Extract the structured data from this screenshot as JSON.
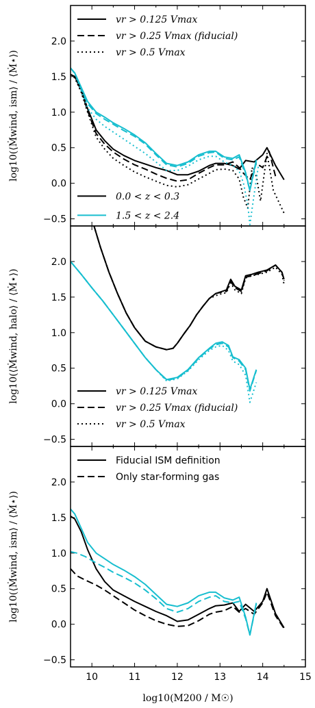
{
  "colors": {
    "black": "#000000",
    "cyan": "#17becf"
  },
  "chart_data": [
    {
      "type": "line",
      "ylabel": "log10(⟨Ṁwind, ism⟩ / ⟨Ṁ⋆⟩)",
      "xlim": [
        9.5,
        15
      ],
      "ylim": [
        -0.6,
        2.5
      ],
      "yticks": [
        "−0.5",
        "0.0",
        "0.5",
        "1.0",
        "1.5",
        "2.0"
      ],
      "legend_top": [
        "vr > 0.125 Vmax",
        "vr > 0.25 Vmax (fiducial)",
        "vr > 0.5 Vmax"
      ],
      "legend_bottom": [
        "0.0 < z < 0.3",
        "1.5 < z < 2.4"
      ],
      "series": [
        {
          "color": "black",
          "style": "solid",
          "x": [
            9.5,
            9.6,
            9.75,
            9.9,
            10.1,
            10.3,
            10.5,
            10.75,
            11,
            11.25,
            11.5,
            11.75,
            12,
            12.25,
            12.5,
            12.75,
            12.9,
            13.1,
            13.3,
            13.45,
            13.6,
            13.8,
            14,
            14.1,
            14.3,
            14.5
          ],
          "y": [
            1.53,
            1.5,
            1.32,
            1.05,
            0.75,
            0.6,
            0.48,
            0.39,
            0.32,
            0.27,
            0.22,
            0.18,
            0.12,
            0.12,
            0.17,
            0.25,
            0.28,
            0.28,
            0.25,
            0.2,
            0.32,
            0.3,
            0.4,
            0.5,
            0.25,
            0.05
          ]
        },
        {
          "color": "black",
          "style": "dashed",
          "x": [
            9.5,
            9.6,
            9.75,
            9.9,
            10.1,
            10.3,
            10.5,
            10.75,
            11,
            11.25,
            11.5,
            11.75,
            12,
            12.25,
            12.5,
            12.75,
            12.9,
            13.1,
            13.3,
            13.45,
            13.55,
            13.7,
            13.85,
            14,
            14.15,
            14.3
          ],
          "y": [
            1.53,
            1.5,
            1.3,
            1.02,
            0.7,
            0.55,
            0.44,
            0.34,
            0.26,
            0.2,
            0.13,
            0.07,
            0.03,
            0.05,
            0.14,
            0.22,
            0.26,
            0.26,
            0.3,
            0.22,
            0.14,
            0.05,
            0.28,
            0.22,
            0.45,
            0.1
          ]
        },
        {
          "color": "black",
          "style": "dotted",
          "x": [
            9.5,
            9.6,
            9.75,
            9.9,
            10.1,
            10.3,
            10.5,
            10.75,
            11,
            11.25,
            11.5,
            11.75,
            12,
            12.25,
            12.5,
            12.75,
            12.9,
            13.1,
            13.3,
            13.45,
            13.55,
            13.65,
            13.75,
            13.85,
            13.95,
            14.1,
            14.25,
            14.5
          ],
          "y": [
            1.53,
            1.48,
            1.28,
            1.0,
            0.65,
            0.48,
            0.35,
            0.25,
            0.16,
            0.09,
            0.03,
            -0.03,
            -0.05,
            -0.02,
            0.06,
            0.14,
            0.19,
            0.2,
            0.18,
            0.06,
            -0.2,
            -0.35,
            0.22,
            0.1,
            -0.25,
            0.42,
            -0.1,
            -0.42
          ]
        },
        {
          "color": "cyan",
          "style": "solid",
          "x": [
            9.5,
            9.6,
            9.75,
            9.9,
            10.1,
            10.3,
            10.5,
            10.75,
            11,
            11.25,
            11.5,
            11.75,
            12,
            12.25,
            12.5,
            12.75,
            12.9,
            13.1,
            13.3,
            13.45,
            13.6,
            13.7,
            13.85
          ],
          "y": [
            1.62,
            1.55,
            1.35,
            1.15,
            1.0,
            0.93,
            0.85,
            0.77,
            0.68,
            0.57,
            0.42,
            0.28,
            0.25,
            0.3,
            0.4,
            0.45,
            0.45,
            0.37,
            0.35,
            0.4,
            0.15,
            -0.1,
            0.33
          ]
        },
        {
          "color": "cyan",
          "style": "dashed",
          "x": [
            9.5,
            9.6,
            9.75,
            9.9,
            10.1,
            10.3,
            10.5,
            10.75,
            11,
            11.25,
            11.5,
            11.75,
            12,
            12.25,
            12.5,
            12.75,
            12.9,
            13.1,
            13.3,
            13.45,
            13.6,
            13.7,
            13.85
          ],
          "y": [
            1.62,
            1.55,
            1.33,
            1.12,
            0.98,
            0.9,
            0.83,
            0.74,
            0.66,
            0.55,
            0.4,
            0.26,
            0.23,
            0.28,
            0.38,
            0.43,
            0.44,
            0.35,
            0.33,
            0.37,
            0.12,
            -0.1,
            0.3
          ]
        },
        {
          "color": "cyan",
          "style": "dotted",
          "x": [
            9.5,
            9.6,
            9.75,
            9.9,
            10.1,
            10.3,
            10.5,
            10.75,
            11,
            11.25,
            11.5,
            11.75,
            12,
            12.25,
            12.5,
            12.75,
            12.9,
            13.1,
            13.3,
            13.45,
            13.55,
            13.65,
            13.7,
            13.8,
            13.9
          ],
          "y": [
            1.62,
            1.54,
            1.3,
            1.06,
            0.9,
            0.8,
            0.72,
            0.62,
            0.52,
            0.42,
            0.3,
            0.18,
            0.18,
            0.24,
            0.33,
            0.38,
            0.38,
            0.3,
            0.25,
            0.17,
            0.0,
            -0.3,
            -0.58,
            -0.15,
            0.25
          ]
        }
      ]
    },
    {
      "type": "line",
      "ylabel": "log10(⟨Ṁwind, halo⟩ / ⟨Ṁ⋆⟩)",
      "xlim": [
        9.5,
        15
      ],
      "ylim": [
        -0.6,
        2.5
      ],
      "yticks": [
        "−0.5",
        "0.0",
        "0.5",
        "1.0",
        "1.5",
        "2.0"
      ],
      "legend_bottom": [
        "vr > 0.125 Vmax",
        "vr > 0.25 Vmax (fiducial)",
        "vr > 0.5 Vmax"
      ],
      "series": [
        {
          "color": "black",
          "style": "solid",
          "x": [
            10.05,
            10.2,
            10.4,
            10.6,
            10.8,
            11,
            11.25,
            11.5,
            11.75,
            11.9,
            12,
            12.15,
            12.3,
            12.45,
            12.6,
            12.75,
            12.9,
            13.05,
            13.15,
            13.25,
            13.35,
            13.5,
            13.6,
            13.75,
            13.9,
            14.1,
            14.3,
            14.45,
            14.5
          ],
          "y": [
            2.5,
            2.2,
            1.85,
            1.55,
            1.28,
            1.07,
            0.88,
            0.8,
            0.76,
            0.78,
            0.85,
            0.98,
            1.1,
            1.25,
            1.37,
            1.48,
            1.55,
            1.58,
            1.6,
            1.75,
            1.65,
            1.6,
            1.8,
            1.82,
            1.85,
            1.88,
            1.95,
            1.85,
            1.75
          ]
        },
        {
          "color": "black",
          "style": "dashed",
          "x": [
            10.05,
            10.2,
            10.4,
            10.6,
            10.8,
            11,
            11.25,
            11.5,
            11.75,
            11.9,
            12,
            12.15,
            12.3,
            12.45,
            12.6,
            12.75,
            12.9,
            13.05,
            13.15,
            13.25,
            13.35,
            13.5,
            13.6,
            13.75,
            13.9,
            14.1,
            14.3,
            14.45,
            14.5
          ],
          "y": [
            2.5,
            2.2,
            1.85,
            1.55,
            1.28,
            1.07,
            0.88,
            0.8,
            0.76,
            0.78,
            0.85,
            0.98,
            1.1,
            1.25,
            1.37,
            1.48,
            1.55,
            1.57,
            1.58,
            1.72,
            1.63,
            1.58,
            1.78,
            1.8,
            1.83,
            1.87,
            1.95,
            1.85,
            1.73
          ]
        },
        {
          "color": "black",
          "style": "dotted",
          "x": [
            10.05,
            10.2,
            10.4,
            10.6,
            10.8,
            11,
            11.25,
            11.5,
            11.75,
            11.9,
            12,
            12.15,
            12.3,
            12.45,
            12.6,
            12.75,
            12.9,
            13.05,
            13.15,
            13.25,
            13.35,
            13.5,
            13.6,
            13.75,
            13.9,
            14.1,
            14.3,
            14.45,
            14.5
          ],
          "y": [
            2.5,
            2.2,
            1.85,
            1.55,
            1.28,
            1.07,
            0.88,
            0.8,
            0.76,
            0.78,
            0.85,
            0.98,
            1.1,
            1.25,
            1.37,
            1.48,
            1.52,
            1.55,
            1.56,
            1.7,
            1.6,
            1.55,
            1.77,
            1.8,
            1.82,
            1.85,
            1.92,
            1.82,
            1.68
          ]
        },
        {
          "color": "cyan",
          "style": "solid",
          "x": [
            9.5,
            9.75,
            10,
            10.25,
            10.5,
            10.75,
            11,
            11.25,
            11.5,
            11.75,
            12,
            12.25,
            12.5,
            12.75,
            12.9,
            13.05,
            13.2,
            13.3,
            13.45,
            13.6,
            13.7,
            13.85
          ],
          "y": [
            2.0,
            1.82,
            1.63,
            1.45,
            1.25,
            1.05,
            0.85,
            0.65,
            0.48,
            0.34,
            0.37,
            0.48,
            0.65,
            0.78,
            0.85,
            0.87,
            0.82,
            0.66,
            0.62,
            0.5,
            0.2,
            0.48
          ]
        },
        {
          "color": "cyan",
          "style": "dashed",
          "x": [
            9.5,
            9.75,
            10,
            10.25,
            10.5,
            10.75,
            11,
            11.25,
            11.5,
            11.75,
            12,
            12.25,
            12.5,
            12.75,
            12.9,
            13.05,
            13.2,
            13.3,
            13.45,
            13.6,
            13.7,
            13.85
          ],
          "y": [
            2.0,
            1.82,
            1.63,
            1.45,
            1.25,
            1.05,
            0.85,
            0.65,
            0.48,
            0.33,
            0.36,
            0.47,
            0.64,
            0.77,
            0.83,
            0.85,
            0.8,
            0.65,
            0.6,
            0.48,
            0.18,
            0.47
          ]
        },
        {
          "color": "cyan",
          "style": "dotted",
          "x": [
            9.5,
            9.75,
            10,
            10.25,
            10.5,
            10.75,
            11,
            11.25,
            11.5,
            11.75,
            12,
            12.25,
            12.5,
            12.75,
            12.9,
            13.05,
            13.2,
            13.3,
            13.45,
            13.6,
            13.7,
            13.85
          ],
          "y": [
            2.0,
            1.82,
            1.63,
            1.45,
            1.25,
            1.05,
            0.85,
            0.65,
            0.48,
            0.32,
            0.35,
            0.46,
            0.62,
            0.75,
            0.8,
            0.82,
            0.75,
            0.6,
            0.55,
            0.4,
            0.02,
            0.3
          ]
        }
      ]
    },
    {
      "type": "line",
      "ylabel": "log10(⟨Ṁwind, ism⟩ / ⟨Ṁ⋆⟩)",
      "xlabel": "log10(M200 / M☉)",
      "xlim": [
        9.5,
        15
      ],
      "ylim": [
        -0.6,
        2.5
      ],
      "xticks": [
        "10",
        "11",
        "12",
        "13",
        "14",
        "15"
      ],
      "yticks": [
        "−0.5",
        "0.0",
        "0.5",
        "1.0",
        "1.5",
        "2.0"
      ],
      "legend_top": [
        "Fiducial ISM definition",
        "Only star-forming gas"
      ],
      "series": [
        {
          "color": "black",
          "style": "solid",
          "x": [
            9.5,
            9.6,
            9.75,
            9.9,
            10.1,
            10.3,
            10.5,
            10.75,
            11,
            11.25,
            11.5,
            11.75,
            12,
            12.25,
            12.5,
            12.75,
            12.9,
            13.1,
            13.3,
            13.45,
            13.6,
            13.8,
            14,
            14.1,
            14.3,
            14.5
          ],
          "y": [
            1.52,
            1.48,
            1.3,
            1.05,
            0.78,
            0.6,
            0.48,
            0.4,
            0.32,
            0.25,
            0.18,
            0.12,
            0.04,
            0.06,
            0.14,
            0.22,
            0.26,
            0.27,
            0.3,
            0.18,
            0.28,
            0.18,
            0.32,
            0.5,
            0.15,
            -0.05
          ]
        },
        {
          "color": "black",
          "style": "dashed",
          "x": [
            9.5,
            9.65,
            9.85,
            10.1,
            10.3,
            10.5,
            10.75,
            11,
            11.25,
            11.5,
            11.75,
            12,
            12.25,
            12.5,
            12.75,
            12.9,
            13.1,
            13.3,
            13.45,
            13.6,
            13.8,
            14,
            14.1,
            14.3,
            14.5
          ],
          "y": [
            0.78,
            0.68,
            0.62,
            0.55,
            0.48,
            0.4,
            0.3,
            0.2,
            0.12,
            0.05,
            0.0,
            -0.03,
            -0.02,
            0.05,
            0.14,
            0.17,
            0.19,
            0.25,
            0.17,
            0.22,
            0.14,
            0.3,
            0.45,
            0.12,
            -0.06
          ]
        },
        {
          "color": "cyan",
          "style": "solid",
          "x": [
            9.5,
            9.6,
            9.75,
            9.9,
            10.1,
            10.3,
            10.5,
            10.75,
            11,
            11.25,
            11.5,
            11.75,
            12,
            12.25,
            12.5,
            12.75,
            12.9,
            13.1,
            13.3,
            13.45,
            13.6,
            13.7,
            13.85
          ],
          "y": [
            1.62,
            1.55,
            1.35,
            1.15,
            1.0,
            0.92,
            0.84,
            0.76,
            0.67,
            0.56,
            0.42,
            0.28,
            0.25,
            0.3,
            0.4,
            0.45,
            0.45,
            0.37,
            0.34,
            0.38,
            0.1,
            -0.15,
            0.3
          ]
        },
        {
          "color": "cyan",
          "style": "dashed",
          "x": [
            9.5,
            9.65,
            9.85,
            10.1,
            10.3,
            10.5,
            10.75,
            11,
            11.25,
            11.5,
            11.75,
            12,
            12.25,
            12.5,
            12.75,
            12.9,
            13.1,
            13.3,
            13.45,
            13.6,
            13.7,
            13.85
          ],
          "y": [
            1.02,
            1.0,
            0.95,
            0.86,
            0.8,
            0.73,
            0.66,
            0.58,
            0.48,
            0.36,
            0.22,
            0.17,
            0.22,
            0.32,
            0.38,
            0.4,
            0.32,
            0.3,
            0.32,
            0.08,
            -0.15,
            0.28
          ]
        }
      ]
    }
  ]
}
